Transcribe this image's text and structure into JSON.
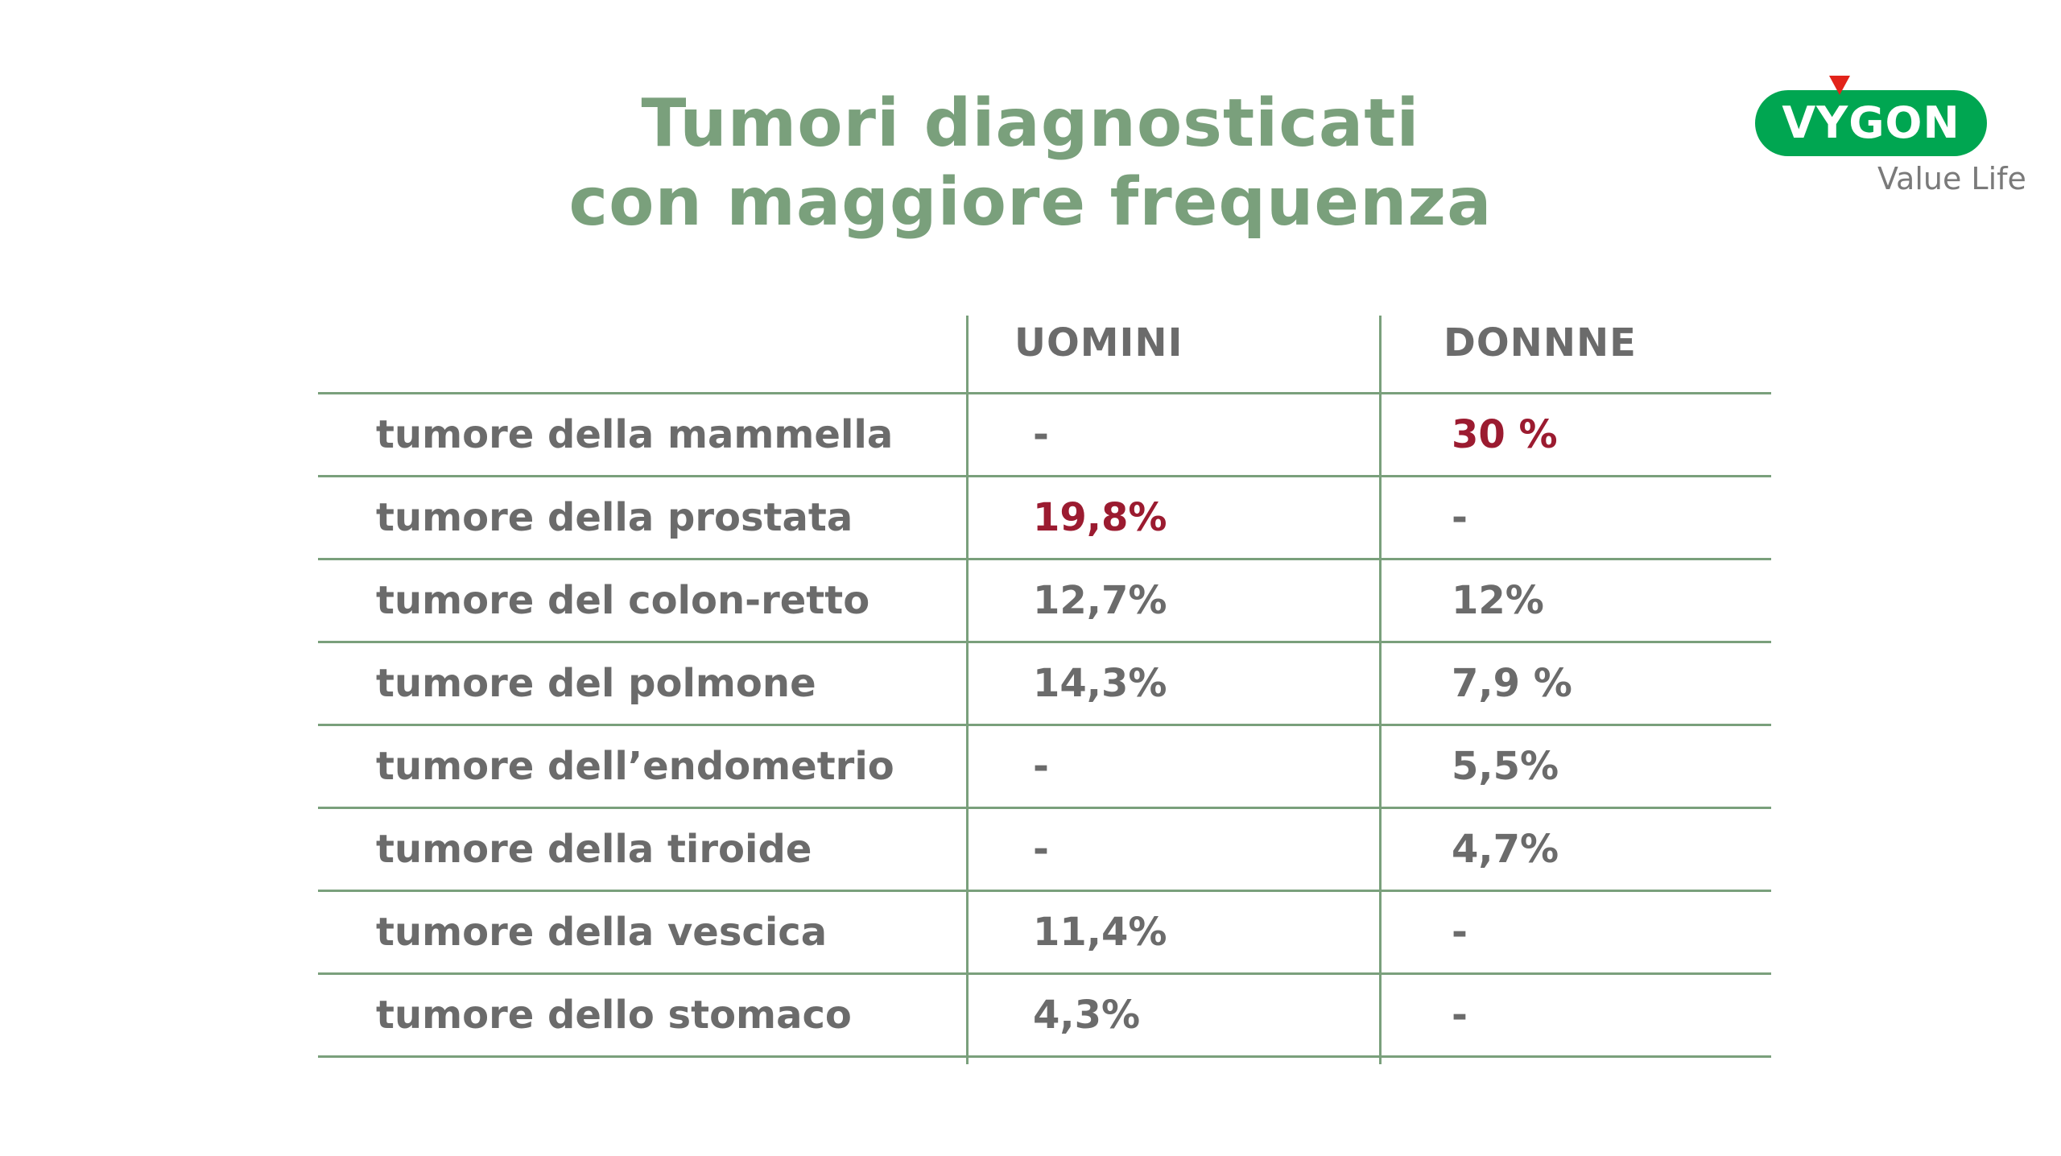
{
  "title": {
    "line1": "Tumori diagnosticati",
    "line2": "con maggiore frequenza"
  },
  "logo": {
    "brand": "VYGON",
    "tagline": "Value Life",
    "colors": {
      "pill": "#00a651",
      "accent": "#e2231a"
    }
  },
  "table": {
    "headers": {
      "label": "",
      "men": "UOMINI",
      "women": "DONNNE"
    },
    "rows": [
      {
        "label": "tumore della mammella",
        "men": "-",
        "women": "30 %",
        "highlight": "women"
      },
      {
        "label": "tumore della prostata",
        "men": "19,8%",
        "women": "-",
        "highlight": "men"
      },
      {
        "label": "tumore del colon-retto",
        "men": "12,7%",
        "women": "12%"
      },
      {
        "label": "tumore del polmone",
        "men": "14,3%",
        "women": "7,9 %"
      },
      {
        "label": "tumore dell’endometrio",
        "men": "-",
        "women": "5,5%"
      },
      {
        "label": "tumore della tiroide",
        "men": "-",
        "women": "4,7%"
      },
      {
        "label": "tumore della vescica",
        "men": "11,4%",
        "women": "-"
      },
      {
        "label": "tumore dello stomaco",
        "men": "4,3%",
        "women": "-"
      }
    ]
  },
  "colors": {
    "title": "#7aa07c",
    "lines": "#7aa07c",
    "text": "#6b6b6b",
    "highlight": "#9b1b30"
  }
}
